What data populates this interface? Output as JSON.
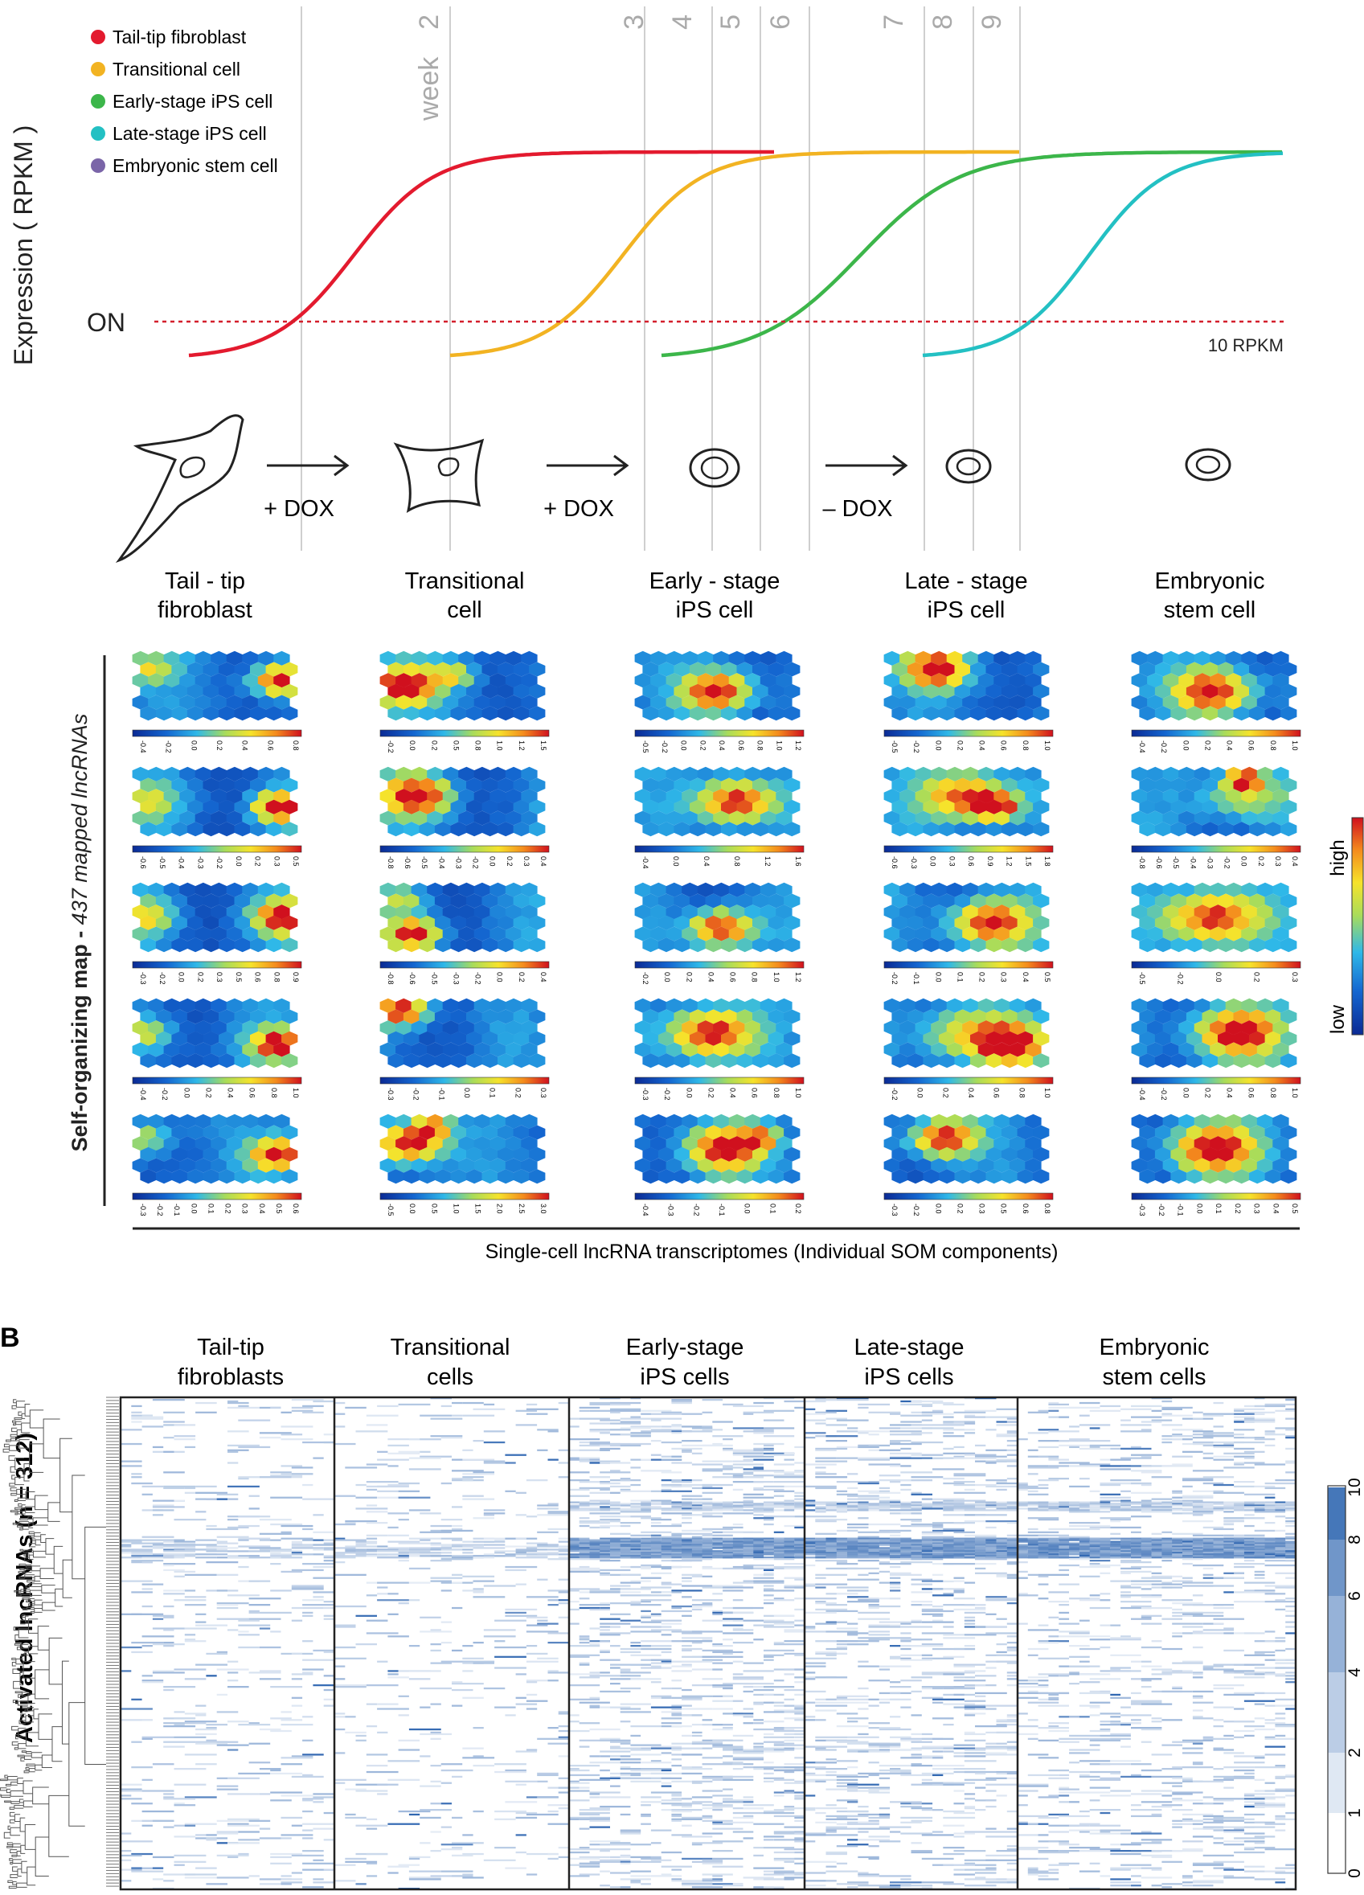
{
  "panel_a": {
    "y_axis_label": "Expression ( RPKM )",
    "on_label": "ON",
    "threshold_label": "10 RPKM",
    "week_word": "week",
    "week_numbers": [
      "2",
      "3",
      "4",
      "5",
      "6",
      "7",
      "8",
      "9"
    ],
    "legend": [
      {
        "label": "Tail-tip fibroblast",
        "color": "#e31a2e"
      },
      {
        "label": "Transitional cell",
        "color": "#f2b322"
      },
      {
        "label": "Early-stage iPS cell",
        "color": "#3cb64a"
      },
      {
        "label": "Late-stage iPS cell",
        "color": "#23c0c3"
      },
      {
        "label": "Embryonic stem cell",
        "color": "#7a65a8"
      }
    ],
    "dox_labels": [
      "+ DOX",
      "+ DOX",
      "– DOX"
    ],
    "stage_names": [
      [
        "Tail - tip",
        "fibroblast"
      ],
      [
        "Transitional",
        "cell"
      ],
      [
        "Early - stage",
        "iPS cell"
      ],
      [
        "Late - stage",
        "iPS cell"
      ],
      [
        "Embryonic",
        "stem cell"
      ]
    ],
    "som_side_label_prefix": "Self-organizing map - ",
    "som_side_label_italic": "437 mapped lncRNAs",
    "som_bottom_label": "Single-cell lncRNA transcriptomes (Individual SOM components)",
    "som_scale_high": "high",
    "som_scale_low": "low",
    "som_tick_labels": [
      [
        [
          "-0.4",
          "-0.2",
          "0.0",
          "0.2",
          "0.4",
          "0.6",
          "0.8"
        ],
        [
          "-0.2",
          "0.0",
          "0.2",
          "0.5",
          "0.8",
          "1.0",
          "1.2",
          "1.5"
        ],
        [
          "-0.5",
          "-0.2",
          "0.0",
          "0.2",
          "0.4",
          "0.6",
          "0.8",
          "1.0",
          "1.2"
        ],
        [
          "-0.5",
          "-0.2",
          "0.0",
          "0.2",
          "0.4",
          "0.6",
          "0.8",
          "1.0"
        ],
        [
          "-0.4",
          "-0.2",
          "0.0",
          "0.2",
          "0.4",
          "0.6",
          "0.8",
          "1.0"
        ]
      ],
      [
        [
          "-0.6",
          "-0.5",
          "-0.4",
          "-0.3",
          "-0.2",
          "0.0",
          "0.2",
          "0.3",
          "0.5"
        ],
        [
          "-0.8",
          "-0.6",
          "-0.5",
          "-0.4",
          "-0.3",
          "-0.2",
          "0.0",
          "0.2",
          "0.3",
          "0.4"
        ],
        [
          "-0.4",
          "0.0",
          "0.4",
          "0.8",
          "1.2",
          "1.6"
        ],
        [
          "-0.6",
          "-0.3",
          "0.0",
          "0.3",
          "0.6",
          "0.9",
          "1.2",
          "1.5",
          "1.8"
        ],
        [
          "-0.8",
          "-0.6",
          "-0.5",
          "-0.4",
          "-0.3",
          "-0.2",
          "0.0",
          "0.2",
          "0.3",
          "0.4"
        ]
      ],
      [
        [
          "-0.3",
          "-0.2",
          "0.0",
          "0.2",
          "0.3",
          "0.5",
          "0.6",
          "0.8",
          "0.9"
        ],
        [
          "-0.8",
          "-0.6",
          "-0.5",
          "-0.3",
          "-0.2",
          "0.0",
          "0.2",
          "0.4"
        ],
        [
          "-0.2",
          "0.0",
          "0.2",
          "0.4",
          "0.6",
          "0.8",
          "1.0",
          "1.2"
        ],
        [
          "-0.2",
          "-0.1",
          "0.0",
          "0.1",
          "0.2",
          "0.3",
          "0.4",
          "0.5"
        ],
        [
          "-0.5",
          "-0.2",
          "0.0",
          "0.2",
          "0.3"
        ]
      ],
      [
        [
          "-0.4",
          "-0.2",
          "0.0",
          "0.2",
          "0.4",
          "0.6",
          "0.8",
          "1.0"
        ],
        [
          "-0.3",
          "-0.2",
          "-0.1",
          "0.0",
          "0.1",
          "0.2",
          "0.3"
        ],
        [
          "-0.3",
          "-0.2",
          "0.0",
          "0.2",
          "0.4",
          "0.6",
          "0.8",
          "1.0"
        ],
        [
          "-0.2",
          "0.0",
          "0.2",
          "0.4",
          "0.6",
          "0.8",
          "1.0"
        ],
        [
          "-0.4",
          "-0.2",
          "0.0",
          "0.2",
          "0.4",
          "0.6",
          "0.8",
          "1.0"
        ]
      ],
      [
        [
          "-0.3",
          "-0.2",
          "-0.1",
          "0.0",
          "0.1",
          "0.2",
          "0.3",
          "0.4",
          "0.5",
          "0.6"
        ],
        [
          "-0.5",
          "0.0",
          "0.5",
          "1.0",
          "1.5",
          "2.0",
          "2.5",
          "3.0"
        ],
        [
          "-0.4",
          "-0.3",
          "-0.2",
          "-0.1",
          "0.0",
          "0.1",
          "0.2"
        ],
        [
          "-0.3",
          "-0.2",
          "0.0",
          "0.2",
          "0.3",
          "0.5",
          "0.6",
          "0.8"
        ],
        [
          "-0.3",
          "-0.2",
          "-0.1",
          "0.0",
          "0.1",
          "0.2",
          "0.3",
          "0.4",
          "0.5"
        ]
      ]
    ]
  },
  "panel_b": {
    "panel_letter": "B",
    "y_axis_label": "Activated lncRNAs (n = 312)",
    "columns": [
      [
        "Tail-tip",
        "fibroblasts"
      ],
      [
        "Transitional",
        "cells"
      ],
      [
        "Early-stage",
        "iPS cells"
      ],
      [
        "Late-stage",
        "iPS cells"
      ],
      [
        "Embryonic",
        "stem cells"
      ]
    ],
    "colorbar_ticks": [
      "0",
      "1",
      "2",
      "4",
      "6",
      "8",
      "10"
    ]
  }
}
